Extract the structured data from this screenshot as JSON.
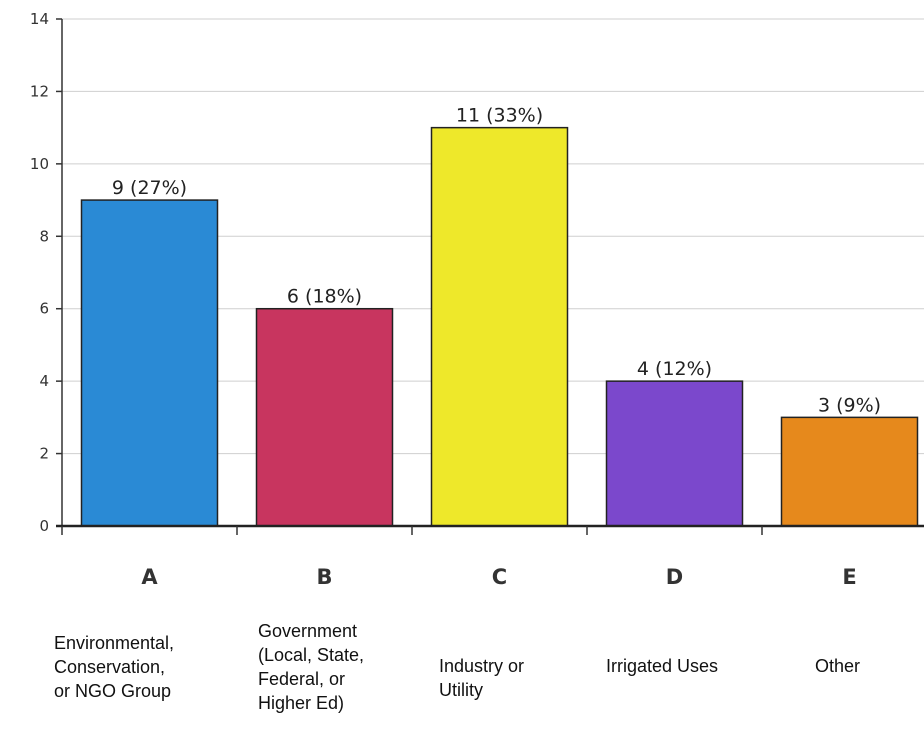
{
  "chart_data": {
    "type": "bar",
    "categories": [
      "A",
      "B",
      "C",
      "D",
      "E"
    ],
    "descriptions": [
      "Environmental,\nConservation,\nor NGO Group",
      "Government\n(Local, State,\nFederal, or\nHigher Ed)",
      "Industry or\nUtility",
      "Irrigated Uses",
      "Other"
    ],
    "values": [
      9,
      6,
      11,
      4,
      3
    ],
    "data_labels": [
      "9 (27%)",
      "6 (18%)",
      "11 (33%)",
      "4 (12%)",
      "3 (9%)"
    ],
    "colors": [
      "#2a8ad5",
      "#c8355f",
      "#eee82a",
      "#7b48cc",
      "#e6891c"
    ],
    "ylim": [
      0,
      14
    ],
    "yticks": [
      0,
      2,
      4,
      6,
      8,
      10,
      12,
      14
    ],
    "grid": true,
    "title": "",
    "xlabel": "",
    "ylabel": ""
  }
}
